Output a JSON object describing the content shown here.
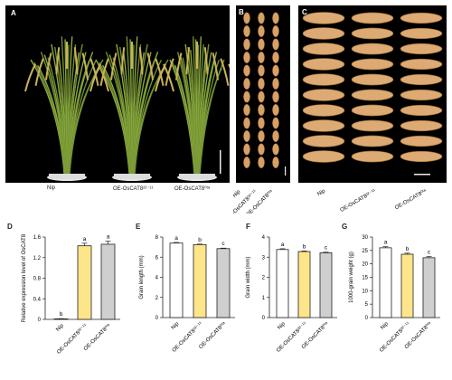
{
  "panels": {
    "A": {
      "label": "A",
      "samples": [
        "Nip",
        "OE-OsCAT8²²⁻¹¹",
        "OE-OsCAT8⁰ᵗᵃ"
      ]
    },
    "B": {
      "label": "B",
      "samples": [
        "Nip",
        "OE-OsCAT8²²⁻¹¹",
        "OE-OsCAT8⁰ᵗᵃ"
      ]
    },
    "C": {
      "label": "C",
      "samples": [
        "Nip",
        "OE-OsCAT8²²⁻¹¹",
        "OE-OsCAT8⁰ᵗᵃ"
      ]
    }
  },
  "colors": {
    "nip": "#ffffff",
    "oe11": "#fde58a",
    "oeta": "#cfcfcf",
    "grain_hull": "#d9a36b",
    "plant_green": "#7a9a3a"
  },
  "chart_data": [
    {
      "panel": "D",
      "type": "bar",
      "categories": [
        "Nip",
        "OE-OsCAT8²²⁻¹¹",
        "OE-OsCAT8⁰ᵗᵃ"
      ],
      "values": [
        0.01,
        1.43,
        1.46
      ],
      "errors": [
        0.005,
        0.05,
        0.06
      ],
      "letters": [
        "b",
        "a",
        "a"
      ],
      "ylabel": "Relative expression level of OsCAT8",
      "ylim": [
        0,
        1.6
      ],
      "yticks": [
        "0",
        "0.4",
        "0.8",
        "1.2",
        "1.6"
      ]
    },
    {
      "panel": "E",
      "type": "bar",
      "categories": [
        "Nip",
        "OE-OsCAT8²²⁻¹¹",
        "OE-OsCAT8⁰ᵗᵃ"
      ],
      "values": [
        7.4,
        7.25,
        6.85
      ],
      "errors": [
        0.06,
        0.05,
        0.05
      ],
      "letters": [
        "a",
        "b",
        "c"
      ],
      "ylabel": "Grain length (mm)",
      "ylim": [
        0,
        8
      ],
      "yticks": [
        "0",
        "2",
        "4",
        "6",
        "8"
      ]
    },
    {
      "panel": "F",
      "type": "bar",
      "categories": [
        "Nip",
        "OE-OsCAT8²²⁻¹¹",
        "OE-OsCAT8⁰ᵗᵃ"
      ],
      "values": [
        3.38,
        3.28,
        3.22
      ],
      "errors": [
        0.04,
        0.03,
        0.03
      ],
      "letters": [
        "a",
        "b",
        "c"
      ],
      "ylabel": "Grain width (mm)",
      "ylim": [
        0,
        4
      ],
      "yticks": [
        "0",
        "1",
        "2",
        "3",
        "4"
      ]
    },
    {
      "panel": "G",
      "type": "bar",
      "categories": [
        "Nip",
        "OE-OsCAT8²²⁻¹¹",
        "OE-OsCAT8⁰ᵗᵃ"
      ],
      "values": [
        26.0,
        23.6,
        22.3
      ],
      "errors": [
        0.4,
        0.4,
        0.4
      ],
      "letters": [
        "a",
        "b",
        "c"
      ],
      "ylabel": "1000-grain weight (g)",
      "ylim": [
        0,
        30
      ],
      "yticks": [
        "0",
        "5",
        "10",
        "15",
        "20",
        "25",
        "30"
      ]
    }
  ]
}
